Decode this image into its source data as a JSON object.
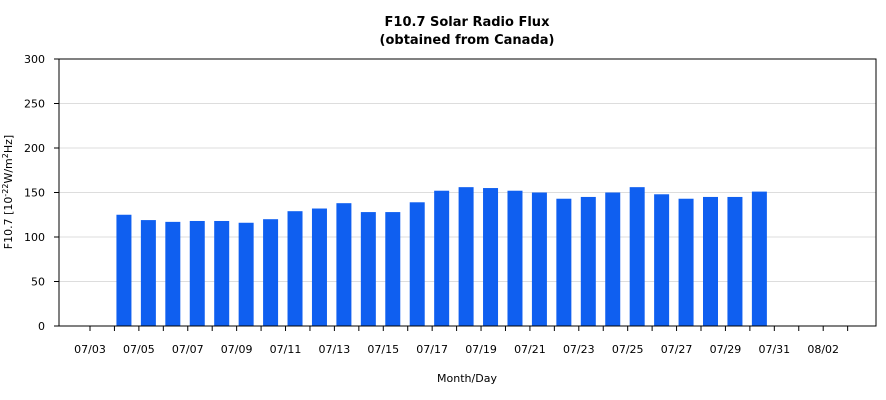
{
  "chart_data": {
    "type": "bar",
    "title": "F10.7 Solar Radio Flux",
    "subtitle": "(obtained from Canada)",
    "xlabel": "Month/Day",
    "ylabel": {
      "prefix": "F10.7 [10",
      "exponent1": "-22",
      "middle": "W/m",
      "exponent2": "2",
      "suffix": "Hz]"
    },
    "ylim": [
      0,
      300
    ],
    "yticks": [
      0,
      50,
      100,
      150,
      200,
      250,
      300
    ],
    "grid": true,
    "bar_color": "#0f5ff0",
    "categories": [
      "07/03",
      "07/04",
      "07/05",
      "07/06",
      "07/07",
      "07/08",
      "07/09",
      "07/10",
      "07/11",
      "07/12",
      "07/13",
      "07/14",
      "07/15",
      "07/16",
      "07/17",
      "07/18",
      "07/19",
      "07/20",
      "07/21",
      "07/22",
      "07/23",
      "07/24",
      "07/25",
      "07/26",
      "07/27",
      "07/28",
      "07/29",
      "07/30",
      "07/31",
      "08/01",
      "08/02",
      "08/03"
    ],
    "values": [
      null,
      125,
      119,
      117,
      118,
      118,
      116,
      120,
      129,
      132,
      138,
      128,
      128,
      139,
      152,
      156,
      155,
      152,
      150,
      143,
      145,
      150,
      156,
      148,
      143,
      145,
      145,
      151,
      null,
      null,
      null,
      null
    ],
    "xtick_labels": [
      "07/03",
      "07/05",
      "07/07",
      "07/09",
      "07/11",
      "07/13",
      "07/15",
      "07/17",
      "07/19",
      "07/21",
      "07/23",
      "07/25",
      "07/27",
      "07/29",
      "07/31",
      "08/02"
    ]
  }
}
